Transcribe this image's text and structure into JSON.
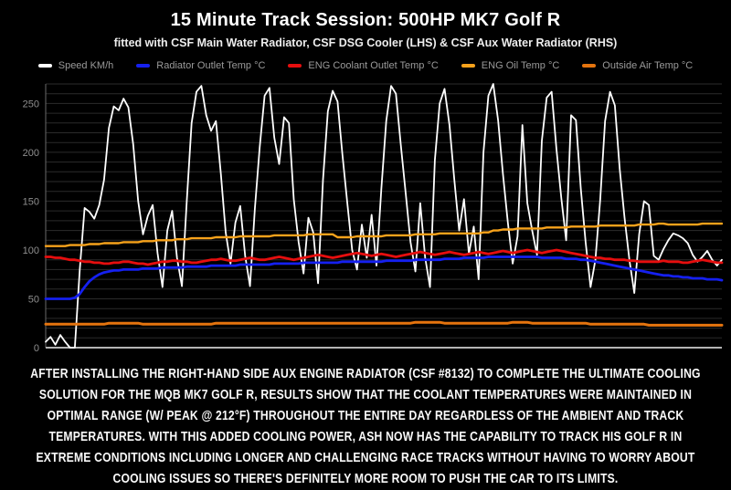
{
  "page": {
    "background": "#000000"
  },
  "header": {
    "title": "15 Minute Track Session: 500HP MK7 Golf R",
    "subtitle": "fitted with CSF Main Water Radiator, CSF DSG Cooler (LHS) & CSF Aux Water Radiator (RHS)"
  },
  "caption": {
    "text": "After installing the right-hand side aux engine radiator (CSF #8132) to complete the ultimate cooling solution for the MQB MK7 Golf R, results show that the coolant temperatures were maintained in optimal range (w/ peak @ 212°F) throughout the entire day regardless of the ambient and track temperatures. With this added cooling power, Ash now has the capability to track his Golf R in extreme conditions including longer and challenging race tracks without having to worry about cooling issues so there's definitely more room to push the car to its limits."
  },
  "chart_data": {
    "type": "line",
    "title": "15 Minute Track Session: 500HP MK7 Golf R",
    "xlabel": "",
    "ylabel": "",
    "x_axis": {
      "labels_visible": false,
      "description": "time over ~15 minute session, unlabeled"
    },
    "ylim": [
      0,
      270
    ],
    "yticks": [
      0,
      50,
      100,
      150,
      200,
      250
    ],
    "grid_step": 10,
    "grid": true,
    "legend_position": "top",
    "colors": {
      "background": "#000000",
      "grid": "#2b2b2b",
      "axis_left": "#6a6a6a",
      "axis_bottom": "#b3b3b3",
      "tick_text": "#8f8f8f",
      "legend_text": "#9a9a9a"
    },
    "series": [
      {
        "name": "Speed KM/h",
        "color": "#ffffff",
        "width": 1.8,
        "values": [
          6,
          11,
          3,
          13,
          6,
          0,
          0,
          80,
          143,
          139,
          132,
          146,
          172,
          225,
          247,
          243,
          255,
          246,
          208,
          150,
          116,
          135,
          146,
          97,
          62,
          120,
          140,
          92,
          63,
          150,
          230,
          262,
          268,
          238,
          222,
          232,
          178,
          118,
          86,
          128,
          145,
          94,
          63,
          142,
          205,
          258,
          266,
          215,
          188,
          236,
          230,
          152,
          108,
          76,
          133,
          118,
          66,
          172,
          242,
          263,
          252,
          198,
          148,
          100,
          80,
          126,
          92,
          136,
          84,
          162,
          232,
          268,
          260,
          208,
          158,
          108,
          78,
          148,
          92,
          62,
          192,
          250,
          265,
          228,
          172,
          120,
          152,
          96,
          124,
          70,
          200,
          258,
          270,
          233,
          178,
          128,
          86,
          114,
          228,
          148,
          120,
          95,
          212,
          256,
          262,
          203,
          153,
          110,
          238,
          233,
          163,
          108,
          62,
          90,
          152,
          232,
          262,
          248,
          183,
          133,
          90,
          56,
          116,
          150,
          146,
          94,
          90,
          101,
          110,
          117,
          115,
          112,
          107,
          95,
          88,
          93,
          99,
          90,
          84,
          90
        ]
      },
      {
        "name": "Radiator Outlet Temp °C",
        "color": "#1520f0",
        "width": 2.8,
        "values": [
          50,
          50,
          50,
          50,
          50,
          50,
          51,
          55,
          62,
          68,
          72,
          75,
          77,
          78,
          79,
          79,
          80,
          80,
          80,
          80,
          81,
          81,
          81,
          81,
          82,
          82,
          82,
          82,
          82,
          83,
          83,
          83,
          83,
          83,
          84,
          84,
          84,
          84,
          84,
          84,
          85,
          85,
          85,
          85,
          85,
          85,
          85,
          86,
          86,
          86,
          86,
          86,
          86,
          87,
          87,
          87,
          87,
          87,
          87,
          87,
          87,
          88,
          88,
          88,
          88,
          88,
          88,
          88,
          88,
          88,
          89,
          89,
          89,
          89,
          89,
          89,
          90,
          90,
          90,
          90,
          90,
          90,
          91,
          91,
          91,
          91,
          92,
          92,
          92,
          92,
          92,
          93,
          93,
          93,
          93,
          93,
          93,
          93,
          93,
          93,
          93,
          93,
          92,
          92,
          92,
          92,
          92,
          91,
          91,
          91,
          90,
          90,
          89,
          88,
          87,
          86,
          85,
          84,
          83,
          82,
          81,
          80,
          79,
          78,
          77,
          76,
          75,
          74,
          74,
          73,
          73,
          72,
          72,
          71,
          71,
          71,
          70,
          70,
          70,
          69
        ]
      },
      {
        "name": "ENG Coolant Outlet Temp °C",
        "color": "#e60e0e",
        "width": 2.8,
        "values": [
          93,
          93,
          92,
          92,
          91,
          90,
          90,
          89,
          88,
          88,
          87,
          87,
          86,
          86,
          87,
          87,
          88,
          88,
          87,
          86,
          86,
          85,
          86,
          87,
          88,
          88,
          89,
          89,
          88,
          88,
          87,
          87,
          88,
          89,
          90,
          90,
          91,
          90,
          89,
          89,
          90,
          91,
          92,
          91,
          90,
          90,
          91,
          92,
          93,
          92,
          91,
          90,
          91,
          92,
          93,
          94,
          95,
          94,
          93,
          92,
          93,
          94,
          95,
          96,
          97,
          96,
          95,
          94,
          95,
          96,
          95,
          94,
          93,
          94,
          95,
          96,
          97,
          98,
          97,
          96,
          95,
          96,
          97,
          98,
          97,
          96,
          95,
          96,
          97,
          98,
          97,
          96,
          97,
          98,
          99,
          98,
          97,
          98,
          99,
          100,
          99,
          98,
          97,
          98,
          99,
          100,
          99,
          98,
          97,
          96,
          95,
          94,
          93,
          92,
          92,
          91,
          91,
          90,
          90,
          90,
          89,
          89,
          88,
          88,
          88,
          88,
          88,
          89,
          88,
          88,
          88,
          87,
          87,
          88,
          89,
          90,
          89,
          88,
          87,
          87
        ]
      },
      {
        "name": "ENG Oil Temp °C",
        "color": "#f7a21b",
        "width": 2.4,
        "values": [
          104,
          104,
          104,
          104,
          104,
          105,
          105,
          105,
          105,
          106,
          106,
          106,
          107,
          107,
          107,
          107,
          108,
          108,
          108,
          108,
          109,
          109,
          109,
          110,
          110,
          110,
          110,
          111,
          111,
          111,
          112,
          112,
          112,
          112,
          112,
          113,
          113,
          113,
          113,
          113,
          114,
          114,
          114,
          114,
          114,
          114,
          114,
          115,
          115,
          115,
          115,
          115,
          115,
          115,
          116,
          116,
          116,
          116,
          116,
          116,
          113,
          113,
          113,
          113,
          114,
          114,
          114,
          114,
          114,
          114,
          115,
          115,
          115,
          115,
          115,
          115,
          116,
          116,
          116,
          116,
          116,
          117,
          117,
          117,
          117,
          117,
          117,
          117,
          117,
          117,
          118,
          118,
          120,
          120,
          121,
          121,
          121,
          122,
          122,
          122,
          122,
          122,
          122,
          123,
          123,
          123,
          123,
          123,
          124,
          124,
          124,
          124,
          124,
          124,
          125,
          125,
          125,
          125,
          125,
          125,
          125,
          125,
          126,
          126,
          126,
          126,
          127,
          127,
          126,
          126,
          126,
          126,
          126,
          126,
          126,
          127,
          127,
          127,
          127,
          127
        ]
      },
      {
        "name": "Outside Air Temp °C",
        "color": "#e5740e",
        "width": 3,
        "values": [
          24,
          24,
          24,
          24,
          24,
          24,
          24,
          24,
          24,
          24,
          24,
          24,
          24,
          25,
          25,
          25,
          25,
          25,
          25,
          25,
          24,
          24,
          24,
          24,
          24,
          24,
          24,
          24,
          24,
          24,
          24,
          24,
          24,
          24,
          24,
          25,
          25,
          25,
          25,
          25,
          25,
          25,
          25,
          25,
          25,
          25,
          25,
          25,
          25,
          25,
          25,
          25,
          25,
          25,
          25,
          25,
          25,
          25,
          25,
          25,
          25,
          25,
          25,
          25,
          25,
          25,
          25,
          25,
          25,
          25,
          25,
          25,
          25,
          25,
          25,
          25,
          26,
          26,
          26,
          26,
          26,
          26,
          25,
          25,
          25,
          25,
          25,
          25,
          25,
          25,
          25,
          25,
          25,
          25,
          25,
          25,
          26,
          26,
          26,
          26,
          25,
          25,
          25,
          25,
          25,
          25,
          25,
          25,
          25,
          25,
          25,
          25,
          24,
          24,
          24,
          24,
          24,
          24,
          24,
          24,
          24,
          24,
          24,
          24,
          23,
          23,
          23,
          23,
          23,
          23,
          23,
          23,
          23,
          23,
          23,
          23,
          23,
          23,
          23,
          23
        ]
      }
    ]
  }
}
